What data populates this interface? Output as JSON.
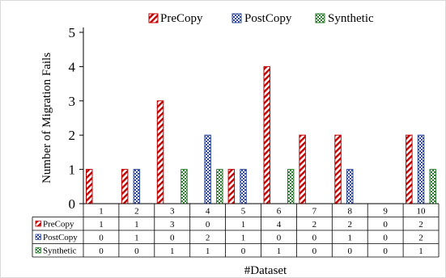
{
  "chart_data": {
    "type": "bar",
    "title": "",
    "xlabel": "#Dataset",
    "ylabel": "Number of Migration Fails",
    "ylim": [
      0,
      5
    ],
    "yticks": [
      "0",
      "1",
      "2",
      "3",
      "4",
      "5"
    ],
    "categories": [
      "1",
      "2",
      "3",
      "4",
      "5",
      "6",
      "7",
      "8",
      "9",
      "10"
    ],
    "series": [
      {
        "name": "PreCopy",
        "values": [
          1,
          1,
          3,
          0,
          1,
          4,
          2,
          2,
          0,
          2
        ],
        "color": "#c00000",
        "pattern": "diagonal-hatch",
        "table_label": "PreCopy"
      },
      {
        "name": "PostCopy",
        "values": [
          0,
          1,
          0,
          2,
          1,
          0,
          0,
          1,
          0,
          2
        ],
        "color": "#2f4a9a",
        "pattern": "checkered",
        "table_label": "PostCopy"
      },
      {
        "name": "Synthetic",
        "values": [
          0,
          0,
          1,
          1,
          0,
          1,
          0,
          0,
          0,
          1
        ],
        "color": "#2e7d32",
        "pattern": "checkered",
        "table_label": "Synthetic"
      }
    ],
    "legend_position": "top",
    "grid": false,
    "data_table": true
  }
}
